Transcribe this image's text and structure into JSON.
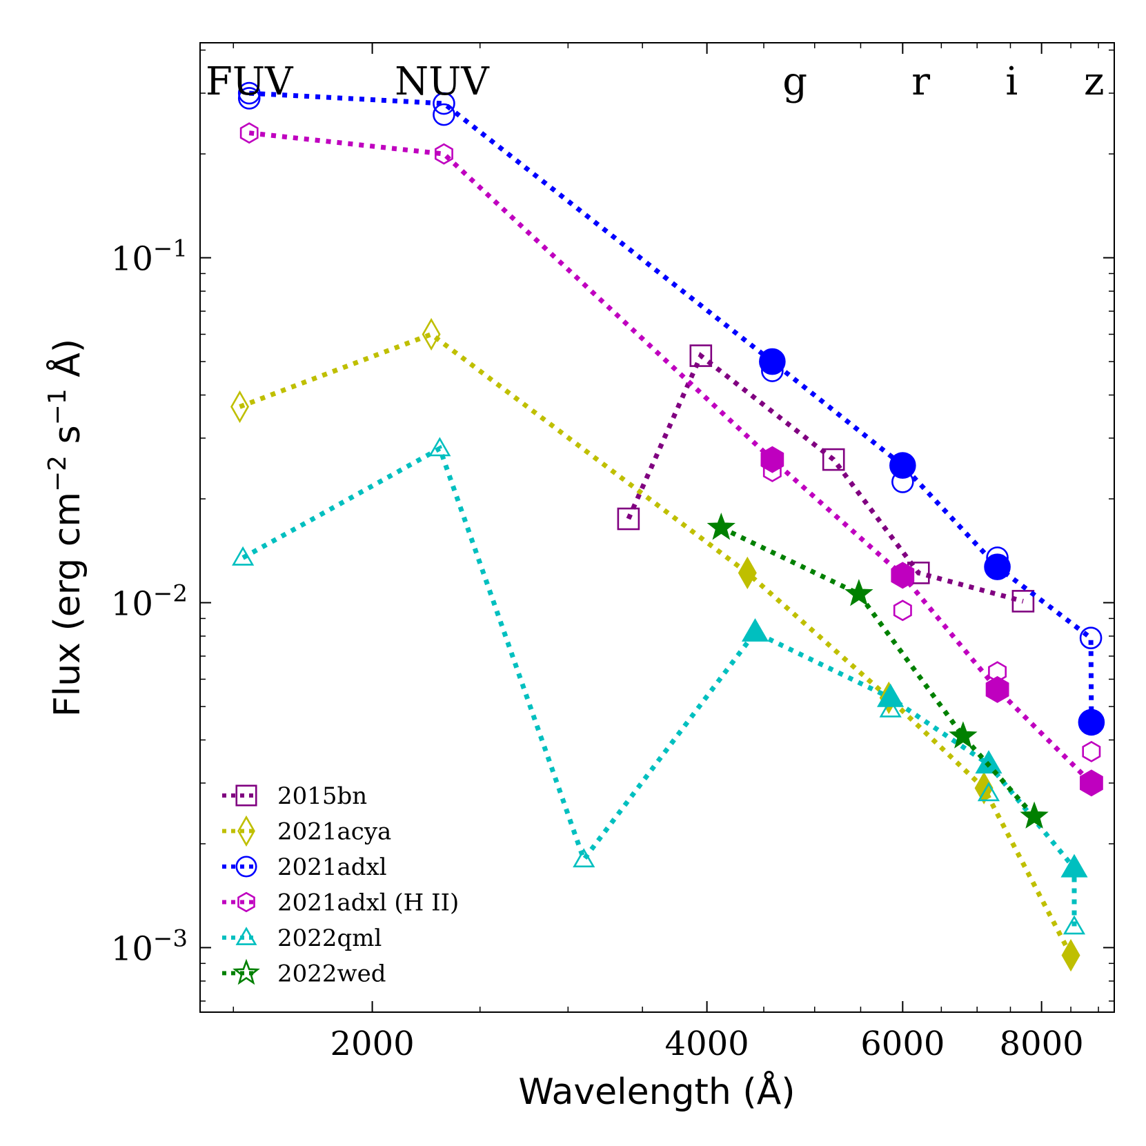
{
  "chart_data": {
    "type": "scatter",
    "xscale": "log",
    "yscale": "log",
    "xlim": [
      1400,
      9300
    ],
    "ylim": [
      0.00065,
      0.42
    ],
    "xlabel": "Wavelength (Å)",
    "ylabel": "Flux (erg cm−2 s−1 Å)",
    "xticks": [
      {
        "value": 2000,
        "label": "2000"
      },
      {
        "value": 4000,
        "label": "4000"
      },
      {
        "value": 6000,
        "label": "6000"
      },
      {
        "value": 8000,
        "label": "8000"
      }
    ],
    "yticks": [
      {
        "value": 0.001,
        "base": "10",
        "exp": "−3"
      },
      {
        "value": 0.01,
        "base": "10",
        "exp": "−2"
      },
      {
        "value": 0.1,
        "base": "10",
        "exp": "−1"
      }
    ],
    "band_labels": [
      {
        "label": "FUV",
        "x": 1550
      },
      {
        "label": "NUV",
        "x": 2310
      },
      {
        "label": "g",
        "x": 4800
      },
      {
        "label": "r",
        "x": 6230
      },
      {
        "label": "i",
        "x": 7520
      },
      {
        "label": "z",
        "x": 8920
      }
    ],
    "legend_position": "lower-left",
    "series": [
      {
        "name": "2015bn",
        "color": "#800080",
        "marker": "square",
        "points": [
          {
            "x": 3400,
            "y": 0.0175,
            "filled": false
          },
          {
            "x": 3950,
            "y": 0.052,
            "filled": false
          },
          {
            "x": 5200,
            "y": 0.026,
            "filled": false
          },
          {
            "x": 6200,
            "y": 0.0122,
            "filled": false
          },
          {
            "x": 7700,
            "y": 0.0101,
            "filled": false
          }
        ]
      },
      {
        "name": "2021acya",
        "color": "#bfbf00",
        "marker": "diamond",
        "points": [
          {
            "x": 1520,
            "y": 0.037,
            "filled": false
          },
          {
            "x": 2260,
            "y": 0.06,
            "filled": false
          },
          {
            "x": 4350,
            "y": 0.0122,
            "filled": true
          },
          {
            "x": 5830,
            "y": 0.0053,
            "filled": true
          },
          {
            "x": 7100,
            "y": 0.0029,
            "filled": true
          },
          {
            "x": 8500,
            "y": 0.00095,
            "filled": true
          }
        ]
      },
      {
        "name": "2021adxl",
        "color": "#0000ff",
        "marker": "circle",
        "points": [
          {
            "x": 1550,
            "y": 0.3,
            "filled": false
          },
          {
            "x": 2320,
            "y": 0.28,
            "filled": false
          },
          {
            "x": 4580,
            "y": 0.05,
            "filled": true
          },
          {
            "x": 6000,
            "y": 0.025,
            "filled": true
          },
          {
            "x": 7300,
            "y": 0.0127,
            "filled": true
          },
          {
            "x": 8860,
            "y": 0.0079,
            "filled": false
          },
          {
            "x": 8870,
            "y": 0.0045,
            "filled": true
          }
        ],
        "extra_points": [
          {
            "x": 1550,
            "y": 0.29,
            "filled": false
          },
          {
            "x": 2320,
            "y": 0.26,
            "filled": false
          },
          {
            "x": 4580,
            "y": 0.047,
            "filled": false
          },
          {
            "x": 6000,
            "y": 0.0224,
            "filled": false
          },
          {
            "x": 7300,
            "y": 0.0135,
            "filled": false
          }
        ]
      },
      {
        "name": "2021adxl (H II)",
        "color": "#bf00bf",
        "marker": "hexagon",
        "points": [
          {
            "x": 1550,
            "y": 0.23,
            "filled": false
          },
          {
            "x": 2320,
            "y": 0.2,
            "filled": false
          },
          {
            "x": 4580,
            "y": 0.026,
            "filled": true
          },
          {
            "x": 6000,
            "y": 0.012,
            "filled": true
          },
          {
            "x": 7300,
            "y": 0.0056,
            "filled": true
          },
          {
            "x": 8870,
            "y": 0.003,
            "filled": true
          }
        ],
        "extra_points": [
          {
            "x": 4580,
            "y": 0.024,
            "filled": false
          },
          {
            "x": 6000,
            "y": 0.0095,
            "filled": false
          },
          {
            "x": 7300,
            "y": 0.0063,
            "filled": false
          },
          {
            "x": 8870,
            "y": 0.0037,
            "filled": false
          }
        ]
      },
      {
        "name": "2022qml",
        "color": "#00bfbf",
        "marker": "triangle",
        "points": [
          {
            "x": 1530,
            "y": 0.0135,
            "filled": false
          },
          {
            "x": 2300,
            "y": 0.028,
            "filled": false
          },
          {
            "x": 3100,
            "y": 0.0018,
            "filled": false
          },
          {
            "x": 4420,
            "y": 0.0082,
            "filled": true
          },
          {
            "x": 5850,
            "y": 0.0053,
            "filled": true
          },
          {
            "x": 7170,
            "y": 0.0034,
            "filled": true
          },
          {
            "x": 8560,
            "y": 0.0017,
            "filled": true
          },
          {
            "x": 8560,
            "y": 0.00115,
            "filled": false
          }
        ],
        "extra_points": [
          {
            "x": 5850,
            "y": 0.0049,
            "filled": false
          },
          {
            "x": 7170,
            "y": 0.0028,
            "filled": false
          }
        ]
      },
      {
        "name": "2022wed",
        "color": "#008000",
        "marker": "star",
        "points": [
          {
            "x": 4120,
            "y": 0.0165,
            "filled": true
          },
          {
            "x": 5480,
            "y": 0.0106,
            "filled": true
          },
          {
            "x": 6800,
            "y": 0.0041,
            "filled": true
          },
          {
            "x": 7880,
            "y": 0.0024,
            "filled": true
          }
        ]
      }
    ]
  }
}
